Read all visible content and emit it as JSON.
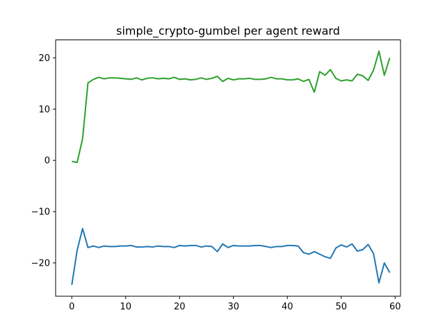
{
  "chart_data": {
    "type": "line",
    "title": "simple_crypto-gumbel per agent reward",
    "xlabel": "",
    "ylabel": "",
    "xlim": [
      -3,
      61
    ],
    "ylim": [
      -26.5,
      23.5
    ],
    "xticks": [
      0,
      10,
      20,
      30,
      40,
      50,
      60
    ],
    "yticks": [
      -20,
      -10,
      0,
      10,
      20
    ],
    "xtick_labels": [
      "0",
      "10",
      "20",
      "30",
      "40",
      "50",
      "60"
    ],
    "ytick_labels": [
      "−20",
      "−10",
      "0",
      "10",
      "20"
    ],
    "grid": false,
    "x": [
      0,
      1,
      2,
      3,
      4,
      5,
      6,
      7,
      8,
      9,
      10,
      11,
      12,
      13,
      14,
      15,
      16,
      17,
      18,
      19,
      20,
      21,
      22,
      23,
      24,
      25,
      26,
      27,
      28,
      29,
      30,
      31,
      32,
      33,
      34,
      35,
      36,
      37,
      38,
      39,
      40,
      41,
      42,
      43,
      44,
      45,
      46,
      47,
      48,
      49,
      50,
      51,
      52,
      53,
      54,
      55,
      56,
      57,
      58,
      59
    ],
    "series": [
      {
        "color": "#1f77b4",
        "values": [
          -24.3,
          -17.5,
          -13.3,
          -17.0,
          -16.7,
          -17.0,
          -16.7,
          -16.8,
          -16.8,
          -16.7,
          -16.7,
          -16.6,
          -16.9,
          -16.9,
          -16.8,
          -16.9,
          -16.7,
          -16.8,
          -16.8,
          -17.0,
          -16.6,
          -16.7,
          -16.6,
          -16.6,
          -16.9,
          -16.7,
          -16.8,
          -17.8,
          -16.3,
          -17.0,
          -16.6,
          -16.7,
          -16.7,
          -16.7,
          -16.6,
          -16.6,
          -16.8,
          -17.0,
          -16.8,
          -16.8,
          -16.6,
          -16.6,
          -16.7,
          -18.0,
          -18.3,
          -17.8,
          -18.3,
          -18.8,
          -19.1,
          -17.1,
          -16.5,
          -16.9,
          -16.3,
          -17.7,
          -17.4,
          -16.4,
          -18.2,
          -23.9,
          -20.0,
          -21.9
        ]
      },
      {
        "color": "#2ca02c",
        "values": [
          -0.2,
          -0.4,
          4.2,
          15.1,
          15.8,
          16.2,
          15.9,
          16.1,
          16.1,
          16.0,
          15.9,
          15.8,
          16.1,
          15.7,
          16.0,
          16.1,
          15.9,
          16.0,
          15.9,
          16.2,
          15.8,
          15.9,
          15.7,
          15.8,
          16.1,
          15.8,
          16.0,
          16.4,
          15.4,
          16.0,
          15.7,
          15.9,
          15.9,
          16.0,
          15.8,
          15.8,
          15.9,
          16.2,
          15.9,
          15.9,
          15.7,
          15.7,
          15.9,
          15.4,
          15.8,
          13.3,
          17.3,
          16.6,
          17.7,
          16.0,
          15.5,
          15.7,
          15.5,
          16.8,
          16.5,
          15.6,
          17.6,
          21.3,
          16.6,
          20.0
        ]
      }
    ]
  }
}
